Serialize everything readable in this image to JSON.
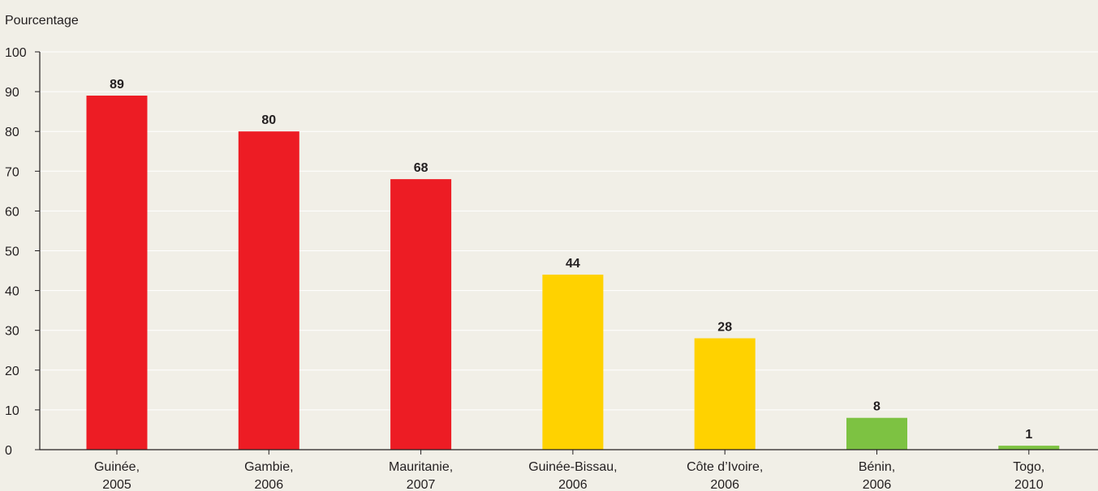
{
  "chart_data": {
    "type": "bar",
    "title": "",
    "ylabel": "Pourcentage",
    "xlabel": "",
    "ylim": [
      0,
      100
    ],
    "yticks": [
      0,
      10,
      20,
      30,
      40,
      50,
      60,
      70,
      80,
      90,
      100
    ],
    "grid": true,
    "categories": [
      {
        "country": "Guinée,",
        "year": "2005"
      },
      {
        "country": "Gambie,",
        "year": "2006"
      },
      {
        "country": "Mauritanie,",
        "year": "2007"
      },
      {
        "country": "Guinée-Bissau,",
        "year": "2006"
      },
      {
        "country": "Côte d’Ivoire,",
        "year": "2006"
      },
      {
        "country": "Bénin,",
        "year": "2006"
      },
      {
        "country": "Togo,",
        "year": "2010"
      }
    ],
    "values": [
      89,
      80,
      68,
      44,
      28,
      8,
      1
    ],
    "colors": [
      "#ed1c24",
      "#ed1c24",
      "#ed1c24",
      "#ffd200",
      "#ffd200",
      "#7dc242",
      "#7dc242"
    ],
    "gridline_color": "#ffffff",
    "axis_color": "#231f20"
  }
}
